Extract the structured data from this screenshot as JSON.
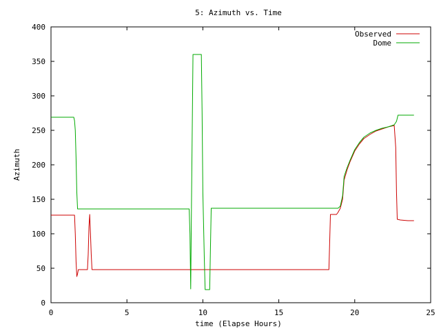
{
  "chart_data": {
    "type": "line",
    "title": "5: Azimuth vs. Time",
    "xlabel": "time (Elapse Hours)",
    "ylabel": "Azimuth",
    "xlim": [
      0,
      25
    ],
    "ylim": [
      0,
      400
    ],
    "xticks": [
      0,
      5,
      10,
      15,
      20,
      25
    ],
    "yticks": [
      0,
      50,
      100,
      150,
      200,
      250,
      300,
      350,
      400
    ],
    "grid": false,
    "legend_position": "top-right",
    "series": [
      {
        "name": "Observed",
        "color": "#cc0000",
        "points": [
          [
            0.0,
            127
          ],
          [
            1.55,
            127
          ],
          [
            1.6,
            100
          ],
          [
            1.65,
            60
          ],
          [
            1.7,
            38
          ],
          [
            1.75,
            42
          ],
          [
            1.8,
            48
          ],
          [
            2.4,
            48
          ],
          [
            2.45,
            70
          ],
          [
            2.5,
            110
          ],
          [
            2.55,
            128
          ],
          [
            2.6,
            100
          ],
          [
            2.65,
            70
          ],
          [
            2.7,
            48
          ],
          [
            18.3,
            48
          ],
          [
            18.4,
            128
          ],
          [
            18.8,
            128
          ],
          [
            18.9,
            131
          ],
          [
            19.05,
            137
          ],
          [
            19.2,
            150
          ],
          [
            19.3,
            178
          ],
          [
            19.5,
            193
          ],
          [
            19.7,
            205
          ],
          [
            20.0,
            220
          ],
          [
            20.3,
            230
          ],
          [
            20.6,
            238
          ],
          [
            21.0,
            244
          ],
          [
            21.4,
            249
          ],
          [
            21.8,
            252
          ],
          [
            22.2,
            255
          ],
          [
            22.6,
            257
          ],
          [
            22.7,
            225
          ],
          [
            22.75,
            160
          ],
          [
            22.8,
            121
          ],
          [
            23.0,
            120
          ],
          [
            23.5,
            119
          ],
          [
            23.9,
            119
          ]
        ]
      },
      {
        "name": "Dome",
        "color": "#00aa00",
        "points": [
          [
            0.0,
            269
          ],
          [
            1.5,
            269
          ],
          [
            1.55,
            264
          ],
          [
            1.6,
            250
          ],
          [
            1.65,
            210
          ],
          [
            1.7,
            160
          ],
          [
            1.75,
            136
          ],
          [
            9.1,
            136
          ],
          [
            9.15,
            100
          ],
          [
            9.2,
            20
          ],
          [
            9.25,
            140
          ],
          [
            9.3,
            250
          ],
          [
            9.35,
            360
          ],
          [
            9.9,
            360
          ],
          [
            9.95,
            275
          ],
          [
            10.0,
            160
          ],
          [
            10.1,
            60
          ],
          [
            10.15,
            19
          ],
          [
            10.45,
            19
          ],
          [
            10.5,
            80
          ],
          [
            10.55,
            137
          ],
          [
            18.9,
            137
          ],
          [
            19.05,
            140
          ],
          [
            19.2,
            155
          ],
          [
            19.3,
            183
          ],
          [
            19.5,
            196
          ],
          [
            19.7,
            207
          ],
          [
            20.0,
            222
          ],
          [
            20.3,
            232
          ],
          [
            20.6,
            240
          ],
          [
            21.0,
            246
          ],
          [
            21.4,
            250
          ],
          [
            21.8,
            253
          ],
          [
            22.2,
            255
          ],
          [
            22.6,
            258
          ],
          [
            22.75,
            263
          ],
          [
            22.85,
            272
          ],
          [
            23.9,
            272
          ]
        ]
      }
    ]
  }
}
